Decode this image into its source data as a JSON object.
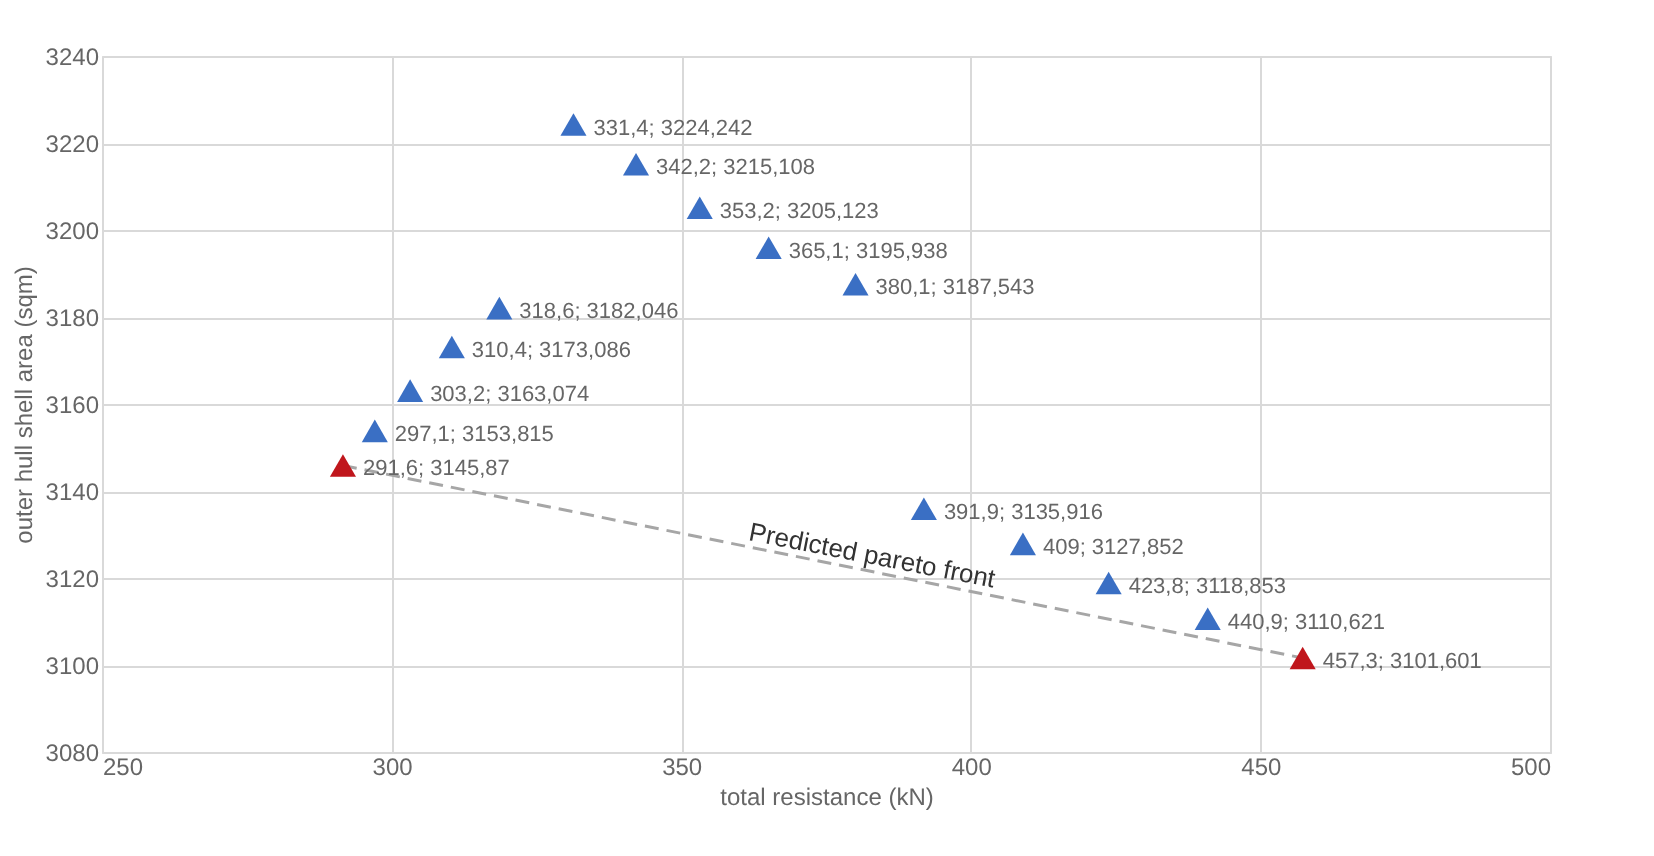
{
  "chart_data": {
    "type": "scatter",
    "xlabel": "total resistance (kN)",
    "ylabel": "outer hull shell area (sqm)",
    "xlim": [
      250,
      500
    ],
    "xticks": [
      250,
      300,
      350,
      400,
      450,
      500
    ],
    "ylim": [
      3080,
      3240
    ],
    "yticks": [
      3080,
      3100,
      3120,
      3140,
      3160,
      3180,
      3200,
      3220,
      3240
    ],
    "grid": true,
    "marker": "triangle",
    "series": [
      {
        "type": "line",
        "color": "#a6a6a6",
        "line_style": "dashed",
        "marker": "none",
        "x": [
          291.6,
          457.3
        ],
        "values": [
          3145.87,
          3101.601
        ]
      },
      {
        "color": "#3a6fc4",
        "x": [
          297.1,
          303.2,
          310.4,
          318.6,
          331.4,
          342.2,
          353.2,
          365.1,
          380.1,
          391.9,
          409,
          423.8,
          440.9
        ],
        "values": [
          3153.815,
          3163.074,
          3173.086,
          3182.046,
          3224.242,
          3215.108,
          3205.123,
          3195.938,
          3187.543,
          3135.916,
          3127.852,
          3118.853,
          3110.621
        ],
        "value_labels": [
          "297,1; 3153,815",
          "303,2; 3163,074",
          "310,4; 3173,086",
          "318,6; 3182,046",
          "331,4; 3224,242",
          "342,2; 3215,108",
          "353,2; 3205,123",
          "365,1; 3195,938",
          "380,1; 3187,543",
          "391,9; 3135,916",
          "409; 3127,852",
          "423,8; 3118,853",
          "440,9; 3110,621"
        ]
      },
      {
        "color": "#c0161c",
        "x": [
          291.6,
          457.3
        ],
        "values": [
          3145.87,
          3101.601
        ],
        "value_labels": [
          "291,6; 3145,87",
          "457,3; 3101,601"
        ]
      }
    ],
    "annotations": [
      "Predicted pareto front"
    ]
  }
}
